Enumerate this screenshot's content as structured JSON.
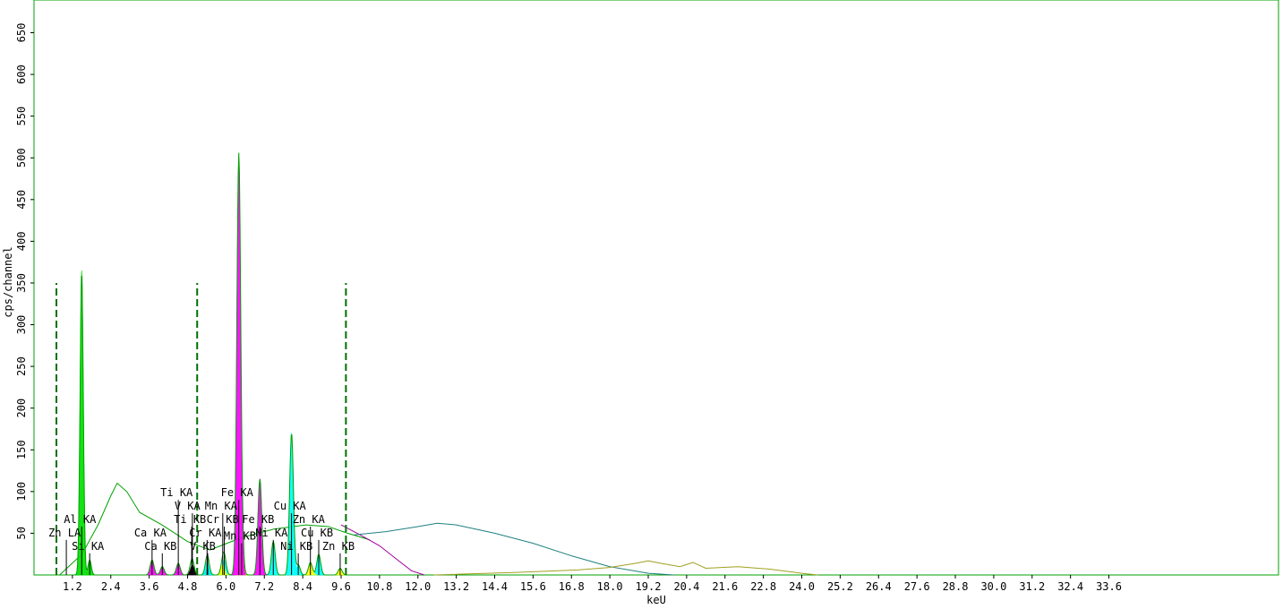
{
  "chart_data": {
    "type": "line",
    "xlabel": "keU",
    "ylabel": "cps/channel",
    "x_unit": "keV",
    "xlim": [
      0,
      35
    ],
    "ylim": [
      0,
      690
    ],
    "x_ticks": [
      "1.2",
      "2.4",
      "3.6",
      "4.8",
      "6.0",
      "7.2",
      "8.4",
      "9.6",
      "10.8",
      "12.0",
      "13.2",
      "14.4",
      "15.6",
      "16.8",
      "18.0",
      "19.2",
      "20.4",
      "21.6",
      "22.8",
      "24.0",
      "25.2",
      "26.4",
      "27.6",
      "28.8",
      "30.0",
      "31.2",
      "32.4",
      "33.6"
    ],
    "y_ticks": [
      50,
      100,
      150,
      200,
      250,
      300,
      350,
      400,
      450,
      500,
      550,
      600,
      650
    ],
    "roi_markers_kev": [
      0.7,
      5.1,
      9.75
    ],
    "roi_marker_height": 350,
    "spectrum_color": "#00a000",
    "series": [
      {
        "element": "Al",
        "color": "#00e000",
        "peaks": [
          {
            "kev": 1.49,
            "height": 365,
            "width": 0.05
          }
        ]
      },
      {
        "element": "Si",
        "color": "#00e000",
        "peaks": [
          {
            "kev": 1.74,
            "height": 18,
            "width": 0.05
          }
        ]
      },
      {
        "element": "Ca",
        "color": "#ff00ff",
        "peaks": [
          {
            "kev": 3.69,
            "height": 18,
            "width": 0.06
          },
          {
            "kev": 4.01,
            "height": 10,
            "width": 0.06
          }
        ]
      },
      {
        "element": "Ti",
        "color": "#ff00ff",
        "peaks": [
          {
            "kev": 4.51,
            "height": 14,
            "width": 0.06
          },
          {
            "kev": 4.93,
            "height": 8,
            "width": 0.06
          }
        ]
      },
      {
        "element": "V",
        "color": "#000000",
        "peaks": [
          {
            "kev": 4.95,
            "height": 12,
            "width": 0.06
          },
          {
            "kev": 5.43,
            "height": 8,
            "width": 0.06
          }
        ]
      },
      {
        "element": "Cr",
        "color": "#00ffff",
        "peaks": [
          {
            "kev": 5.41,
            "height": 16,
            "width": 0.06
          },
          {
            "kev": 5.95,
            "height": 18,
            "width": 0.06
          }
        ]
      },
      {
        "element": "Mn",
        "color": "#ffff00",
        "peaks": [
          {
            "kev": 5.9,
            "height": 12,
            "width": 0.06
          },
          {
            "kev": 6.49,
            "height": 28,
            "width": 0.06
          }
        ]
      },
      {
        "element": "Fe",
        "color": "#ff00ff",
        "peaks": [
          {
            "kev": 6.4,
            "height": 497,
            "width": 0.06
          },
          {
            "kev": 7.06,
            "height": 115,
            "width": 0.06
          }
        ]
      },
      {
        "element": "Ni",
        "color": "#00ffff",
        "peaks": [
          {
            "kev": 7.48,
            "height": 40,
            "width": 0.06
          },
          {
            "kev": 8.26,
            "height": 12,
            "width": 0.06
          }
        ]
      },
      {
        "element": "Cu",
        "color": "#00ffff",
        "peaks": [
          {
            "kev": 8.05,
            "height": 170,
            "width": 0.06
          },
          {
            "kev": 8.9,
            "height": 25,
            "width": 0.06
          }
        ]
      },
      {
        "element": "Zn",
        "color": "#ffff00",
        "peaks": [
          {
            "kev": 8.64,
            "height": 15,
            "width": 0.06
          },
          {
            "kev": 9.57,
            "height": 8,
            "width": 0.06
          }
        ]
      }
    ],
    "backgrounds": [
      {
        "name": "continuum-green",
        "color": "#00a000",
        "points": [
          [
            0.8,
            0
          ],
          [
            1.5,
            25
          ],
          [
            2.0,
            60
          ],
          [
            2.4,
            95
          ],
          [
            2.6,
            110
          ],
          [
            2.9,
            100
          ],
          [
            3.3,
            75
          ],
          [
            4.0,
            60
          ],
          [
            4.8,
            40
          ],
          [
            5.5,
            30
          ],
          [
            6.5,
            45
          ],
          [
            7.5,
            55
          ],
          [
            8.5,
            60
          ],
          [
            9.2,
            58
          ],
          [
            9.8,
            50
          ],
          [
            10.5,
            42
          ]
        ]
      },
      {
        "name": "tail-purple",
        "color": "#a000a0",
        "points": [
          [
            9.6,
            60
          ],
          [
            10.2,
            48
          ],
          [
            10.8,
            35
          ],
          [
            11.3,
            20
          ],
          [
            11.8,
            5
          ],
          [
            12.2,
            0
          ]
        ]
      },
      {
        "name": "compton-teal",
        "color": "#208080",
        "points": [
          [
            10.0,
            48
          ],
          [
            11.0,
            52
          ],
          [
            12.0,
            58
          ],
          [
            12.6,
            62
          ],
          [
            13.2,
            60
          ],
          [
            14.4,
            50
          ],
          [
            15.6,
            38
          ],
          [
            16.8,
            23
          ],
          [
            18.0,
            10
          ],
          [
            19.2,
            2
          ],
          [
            20.0,
            0
          ]
        ]
      },
      {
        "name": "rayleigh-olive",
        "color": "#a0a020",
        "points": [
          [
            12.5,
            0
          ],
          [
            15.0,
            3
          ],
          [
            17.0,
            6
          ],
          [
            18.0,
            9
          ],
          [
            18.8,
            14
          ],
          [
            19.2,
            17
          ],
          [
            19.6,
            14
          ],
          [
            20.2,
            10
          ],
          [
            20.6,
            15
          ],
          [
            21.0,
            8
          ],
          [
            22.0,
            10
          ],
          [
            23.0,
            7
          ],
          [
            24.0,
            2
          ],
          [
            24.5,
            0
          ]
        ]
      }
    ],
    "peak_labels": [
      {
        "text": "Zn LA",
        "kev": 1.01,
        "y": 42
      },
      {
        "text": "Al KA",
        "kev": 1.49,
        "y": 58
      },
      {
        "text": "Si KA",
        "kev": 1.74,
        "y": 26
      },
      {
        "text": "Ca KA",
        "kev": 3.69,
        "y": 42
      },
      {
        "text": "Ca KB",
        "kev": 4.01,
        "y": 26
      },
      {
        "text": "Ti KA",
        "kev": 4.51,
        "y": 90
      },
      {
        "text": "V KA",
        "kev": 4.95,
        "y": 74
      },
      {
        "text": "Mn KA",
        "kev": 5.9,
        "y": 74
      },
      {
        "text": "Ti KB",
        "kev": 4.93,
        "y": 58
      },
      {
        "text": "Cr KB",
        "kev": 5.95,
        "y": 58
      },
      {
        "text": "Cr KA",
        "kev": 5.41,
        "y": 42
      },
      {
        "text": "V KB",
        "kev": 5.43,
        "y": 26
      },
      {
        "text": "Fe KA",
        "kev": 6.4,
        "y": 90
      },
      {
        "text": "Fe KB",
        "kev": 7.06,
        "y": 58
      },
      {
        "text": "Mn KB",
        "kev": 6.49,
        "y": 38
      },
      {
        "text": "Ni KA",
        "kev": 7.48,
        "y": 42
      },
      {
        "text": "Ni KB",
        "kev": 8.26,
        "y": 26
      },
      {
        "text": "Cu KA",
        "kev": 8.05,
        "y": 74
      },
      {
        "text": "Zn KA",
        "kev": 8.64,
        "y": 58
      },
      {
        "text": "Cu KB",
        "kev": 8.9,
        "y": 42
      },
      {
        "text": "Zn KB",
        "kev": 9.57,
        "y": 26
      }
    ],
    "grid": false
  }
}
